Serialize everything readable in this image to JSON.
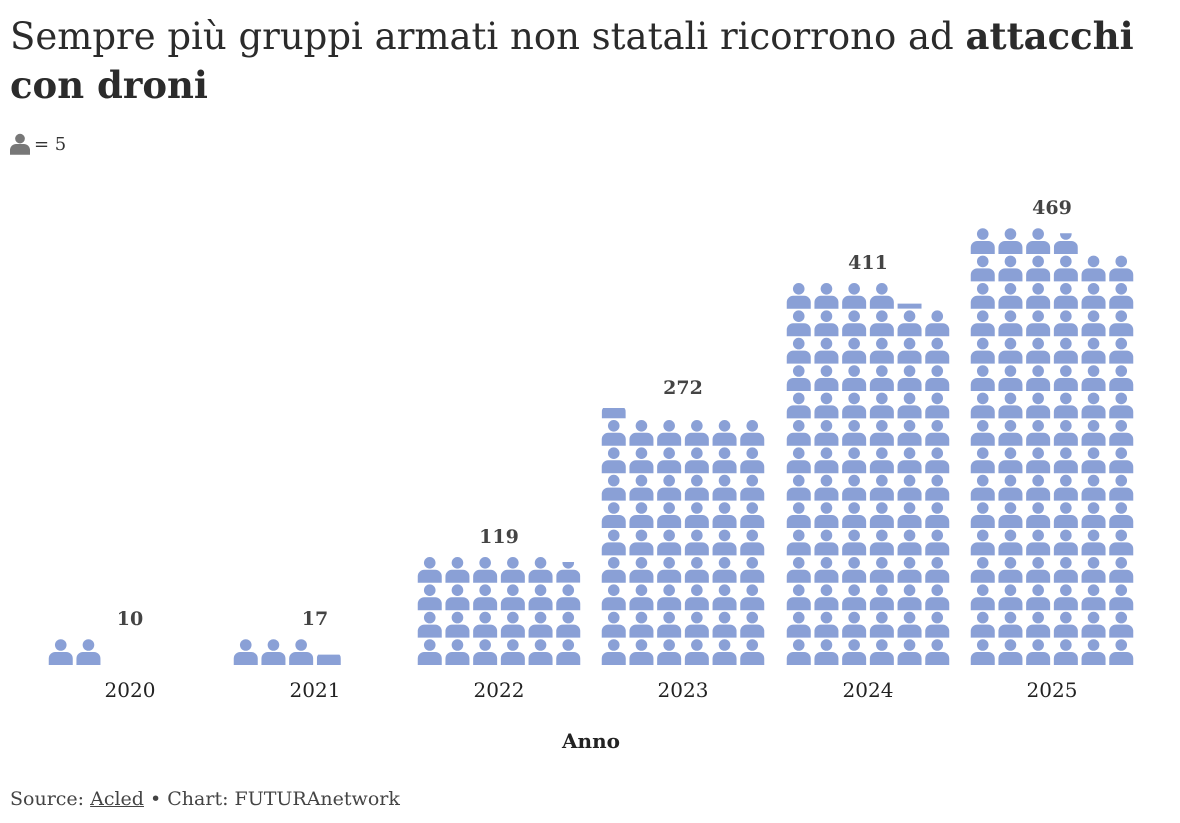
{
  "title": {
    "regular": "Sempre più gruppi armati non statali ricorrono ad ",
    "bold": "attacchi con droni"
  },
  "legend": {
    "unit_label": "= 5",
    "unit_value": 5,
    "icon": "person-icon"
  },
  "chart_data": {
    "type": "bar",
    "style": "isotype",
    "categories": [
      "2020",
      "2021",
      "2022",
      "2023",
      "2024",
      "2025"
    ],
    "values": [
      10,
      17,
      119,
      272,
      411,
      469
    ],
    "xlabel": "Anno",
    "ylabel": "",
    "icon_value": 5,
    "icons_per_row": 6,
    "grid": false,
    "color": "#8aa0d6"
  },
  "footer": {
    "source_prefix": "Source: ",
    "source_link": "Acled",
    "separator": " • ",
    "credit": "Chart: FUTURAnetwork"
  }
}
